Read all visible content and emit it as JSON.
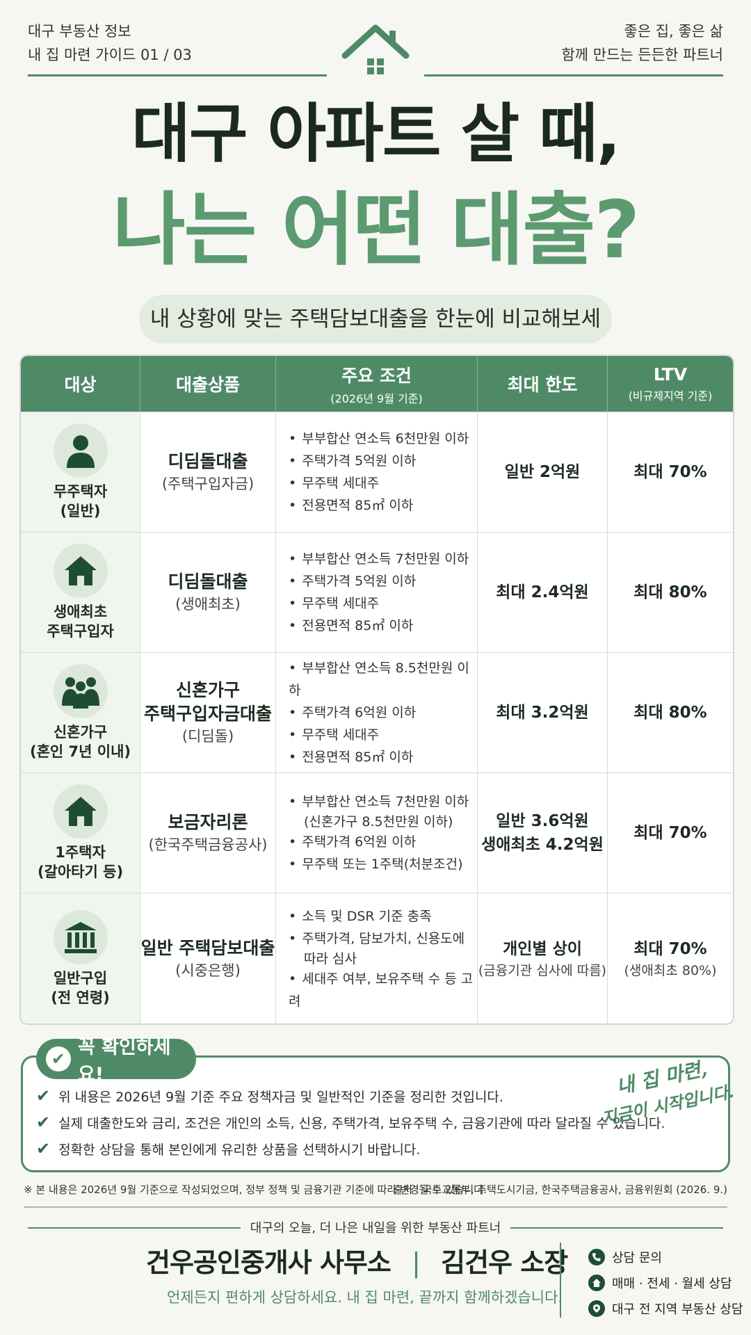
{
  "header": {
    "left_line1": "대구 부동산 정보",
    "left_line2": "내 집 마련 가이드 01 / 03",
    "right_line1": "좋은 집, 좋은 삶",
    "right_line2": "함께 만드는 든든한 파트너"
  },
  "title": {
    "line1": "대구 아파트 살 때,",
    "line2": "나는 어떤 대출?"
  },
  "subtitle": "내 상황에 맞는 주택담보대출을 한눈에 비교해보세요.",
  "table": {
    "headers": [
      {
        "label": "대상",
        "sub": ""
      },
      {
        "label": "대출상품",
        "sub": ""
      },
      {
        "label": "주요 조건",
        "sub": "(2026년 9월 기준)"
      },
      {
        "label": "최대 한도",
        "sub": ""
      },
      {
        "label": "LTV",
        "sub": "(비규제지역 기준)"
      }
    ],
    "rows": [
      {
        "icon": "person-icon",
        "target": [
          "무주택자",
          "(일반)"
        ],
        "product_main": "디딤돌대출",
        "product_sub": "(주택구입자금)",
        "conditions": [
          "부부합산 연소득 6천만원 이하",
          "주택가격 5억원 이하",
          "무주택 세대주",
          "전용면적 85㎡ 이하"
        ],
        "limit": [
          "일반 2억원"
        ],
        "limit_sub": "",
        "ltv": "최대 70%",
        "ltv_sub": ""
      },
      {
        "icon": "house-icon",
        "target": [
          "생애최초",
          "주택구입자"
        ],
        "product_main": "디딤돌대출",
        "product_sub": "(생애최초)",
        "conditions": [
          "부부합산 연소득 7천만원 이하",
          "주택가격 5억원 이하",
          "무주택 세대주",
          "전용면적 85㎡ 이하"
        ],
        "limit": [
          "최대 2.4억원"
        ],
        "limit_sub": "",
        "ltv": "최대 80%",
        "ltv_sub": ""
      },
      {
        "icon": "family-icon",
        "target": [
          "신혼가구",
          "(혼인 7년 이내)"
        ],
        "product_main": "신혼가구\n주택구입자금대출",
        "product_sub": "(디딤돌)",
        "conditions": [
          "부부합산 연소득 8.5천만원 이하",
          "주택가격 6억원 이하",
          "무주택 세대주",
          "전용면적 85㎡ 이하"
        ],
        "limit": [
          "최대 3.2억원"
        ],
        "limit_sub": "",
        "ltv": "최대 80%",
        "ltv_sub": ""
      },
      {
        "icon": "house-icon",
        "target": [
          "1주택자",
          "(갈아타기 등)"
        ],
        "product_main": "보금자리론",
        "product_sub": "(한국주택금융공사)",
        "conditions": [
          "부부합산 연소득 7천만원 이하",
          "(신혼가구 8.5천만원 이하)",
          "주택가격 6억원 이하",
          "무주택 또는 1주택(처분조건)"
        ],
        "limit": [
          "일반 3.6억원",
          "생애최초 4.2억원"
        ],
        "limit_sub": "",
        "ltv": "최대 70%",
        "ltv_sub": ""
      },
      {
        "icon": "bank-icon",
        "target": [
          "일반구입",
          "(전 연령)"
        ],
        "product_main": "일반 주택담보대출",
        "product_sub": "(시중은행)",
        "conditions": [
          "소득 및 DSR 기준 충족",
          "주택가격, 담보가치, 신용도에",
          "따라 심사",
          "세대주 여부, 보유주택 수 등 고려"
        ],
        "limit": [
          "개인별 상이"
        ],
        "limit_sub": "(금융기관 심사에 따름)",
        "ltv": "최대 70%",
        "ltv_sub": "(생애최초 80%)"
      }
    ]
  },
  "check": {
    "title": "꼭 확인하세요!",
    "items": [
      "위 내용은 2026년 9월 기준 주요 정책자금 및 일반적인 기준을 정리한 것입니다.",
      "실제 대출한도와 금리, 조건은 개인의 소득, 신용, 주택가격, 보유주택 수, 금융기관에 따라 달라질 수 있습니다.",
      "정확한 상담을 통해 본인에게 유리한 상품을 선택하시기 바랍니다."
    ],
    "handwriting_line1": "내 집 마련,",
    "handwriting_line2": "지금이 시작입니다."
  },
  "notes": {
    "left": "※ 본 내용은 2026년 9월 기준으로 작성되었으며, 정부 정책 및 금융기관 기준에 따라 변경될 수 있습니다.",
    "right": "출처 : 국토교통부, 주택도시기금, 한국주택금융공사, 금융위원회 (2026. 9.)"
  },
  "footer": {
    "tagline": "대구의 오늘, 더 나은 내일을 위한 부동산 파트너",
    "office": "건우공인중개사 사무소",
    "divider": "|",
    "manager": "김건우 소장",
    "sub": "언제든지 편하게 상담하세요. 내 집 마련, 끝까지 함께하겠습니다.",
    "contacts": [
      {
        "icon": "phone-icon",
        "label": "상담 문의"
      },
      {
        "icon": "home-icon",
        "label": "매매 · 전세 · 월세 상담"
      },
      {
        "icon": "location-icon",
        "label": "대구 전 지역 부동산 상담"
      }
    ]
  },
  "colors": {
    "accent": "#4f8a66",
    "title_green": "#5c9a70",
    "dark": "#1b2a20"
  }
}
